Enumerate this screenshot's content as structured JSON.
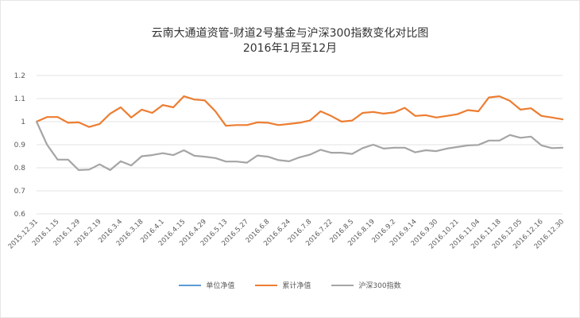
{
  "chart_data": {
    "type": "line",
    "title": "云南大通道资管-财道2号基金与沪深300指数变化对比图",
    "subtitle": "2016年1月至12月",
    "ylim": [
      0.6,
      1.2
    ],
    "yticks": [
      "0.6",
      "0.7",
      "0.8",
      "0.9",
      "1",
      "1.1",
      "1.2"
    ],
    "x_tick_labels": [
      "2015.12.31",
      "2016.1.15",
      "2016.1.29",
      "2016.2.19",
      "2016.3.4",
      "2016.3.18",
      "2016.4.1",
      "2016.4.15",
      "2016.4.29",
      "2016.5.13",
      "2016.5.27",
      "2016.6.8",
      "2016.6.24",
      "2016.7.8",
      "2016.7.22",
      "2016.8.5",
      "2016.8.19",
      "2016.9.2",
      "2016.9.14",
      "2016.9.30",
      "2016.10.21",
      "2016.11.04",
      "2016.11.18",
      "2016.12.05",
      "2016.12.16",
      "2016.12.30"
    ],
    "grid": true,
    "legend_position": "bottom",
    "series": [
      {
        "name": "单位净值",
        "color": "#5b9bd5",
        "values": []
      },
      {
        "name": "累计净值",
        "color": "#ed7d31",
        "values": [
          1.0,
          1.02,
          1.02,
          0.995,
          0.997,
          0.977,
          0.99,
          1.035,
          1.062,
          1.018,
          1.052,
          1.038,
          1.072,
          1.062,
          1.11,
          1.096,
          1.092,
          1.045,
          0.982,
          0.985,
          0.985,
          0.997,
          0.995,
          0.985,
          0.99,
          0.995,
          1.005,
          1.045,
          1.025,
          1.0,
          1.005,
          1.038,
          1.042,
          1.035,
          1.04,
          1.06,
          1.025,
          1.028,
          1.018,
          1.025,
          1.032,
          1.05,
          1.045,
          1.105,
          1.11,
          1.09,
          1.052,
          1.058,
          1.025,
          1.018,
          1.01
        ]
      },
      {
        "name": "沪深300指数",
        "color": "#a5a5a5",
        "values": [
          1.0,
          0.9,
          0.835,
          0.835,
          0.79,
          0.792,
          0.815,
          0.79,
          0.828,
          0.81,
          0.85,
          0.855,
          0.863,
          0.855,
          0.876,
          0.852,
          0.848,
          0.842,
          0.827,
          0.827,
          0.822,
          0.853,
          0.848,
          0.833,
          0.828,
          0.845,
          0.857,
          0.878,
          0.865,
          0.865,
          0.86,
          0.885,
          0.9,
          0.883,
          0.887,
          0.887,
          0.867,
          0.876,
          0.872,
          0.883,
          0.89,
          0.897,
          0.899,
          0.918,
          0.918,
          0.942,
          0.93,
          0.935,
          0.897,
          0.885,
          0.887
        ]
      }
    ]
  }
}
